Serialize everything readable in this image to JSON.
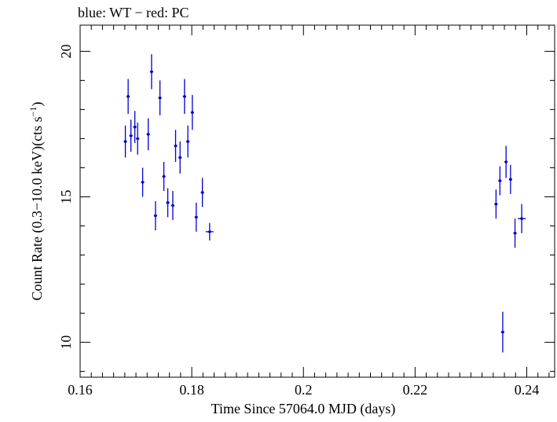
{
  "chart_data": {
    "type": "scatter",
    "title": "blue: WT − red: PC",
    "xlabel": "Time Since 57064.0 MJD (days)",
    "ylabel_main": "Count Rate (0.3−10.0 keV)(cts s",
    "ylabel_sup": "−1",
    "ylabel_close": ")",
    "xlim": [
      0.16,
      0.245
    ],
    "ylim": [
      8.8,
      20.9
    ],
    "xticks": [
      {
        "value": 0.16,
        "label": "0.16"
      },
      {
        "value": 0.18,
        "label": "0.18"
      },
      {
        "value": 0.2,
        "label": "0.2"
      },
      {
        "value": 0.22,
        "label": "0.22"
      },
      {
        "value": 0.24,
        "label": "0.24"
      }
    ],
    "yticks": [
      {
        "value": 10,
        "label": "10"
      },
      {
        "value": 15,
        "label": "15"
      },
      {
        "value": 20,
        "label": "20"
      }
    ],
    "x_minor_step": 0.002,
    "y_minor_step": 1,
    "grid": false,
    "series": [
      {
        "color": "#0000cc",
        "points": [
          {
            "x": 0.1681,
            "y": 16.9,
            "xerr": 0.0003,
            "yerr": 0.55
          },
          {
            "x": 0.1686,
            "y": 18.45,
            "xerr": 0.0003,
            "yerr": 0.6
          },
          {
            "x": 0.1691,
            "y": 17.1,
            "xerr": 0.0003,
            "yerr": 0.55
          },
          {
            "x": 0.1698,
            "y": 17.4,
            "xerr": 0.0003,
            "yerr": 0.55
          },
          {
            "x": 0.1703,
            "y": 17.0,
            "xerr": 0.0003,
            "yerr": 0.55
          },
          {
            "x": 0.1712,
            "y": 15.5,
            "xerr": 0.0003,
            "yerr": 0.5
          },
          {
            "x": 0.1722,
            "y": 17.15,
            "xerr": 0.0003,
            "yerr": 0.55
          },
          {
            "x": 0.1728,
            "y": 19.3,
            "xerr": 0.0003,
            "yerr": 0.6
          },
          {
            "x": 0.1735,
            "y": 14.35,
            "xerr": 0.0003,
            "yerr": 0.5
          },
          {
            "x": 0.1743,
            "y": 18.4,
            "xerr": 0.0003,
            "yerr": 0.6
          },
          {
            "x": 0.175,
            "y": 15.7,
            "xerr": 0.0003,
            "yerr": 0.5
          },
          {
            "x": 0.1757,
            "y": 14.8,
            "xerr": 0.0003,
            "yerr": 0.5
          },
          {
            "x": 0.1766,
            "y": 14.7,
            "xerr": 0.0003,
            "yerr": 0.5
          },
          {
            "x": 0.1771,
            "y": 16.75,
            "xerr": 0.0003,
            "yerr": 0.55
          },
          {
            "x": 0.1779,
            "y": 16.35,
            "xerr": 0.0003,
            "yerr": 0.55
          },
          {
            "x": 0.1787,
            "y": 18.45,
            "xerr": 0.0003,
            "yerr": 0.6
          },
          {
            "x": 0.1793,
            "y": 16.9,
            "xerr": 0.0003,
            "yerr": 0.55
          },
          {
            "x": 0.1801,
            "y": 17.9,
            "xerr": 0.0003,
            "yerr": 0.6
          },
          {
            "x": 0.1808,
            "y": 14.3,
            "xerr": 0.0003,
            "yerr": 0.5
          },
          {
            "x": 0.1819,
            "y": 15.15,
            "xerr": 0.0003,
            "yerr": 0.5
          },
          {
            "x": 0.1832,
            "y": 13.8,
            "xerr": 0.0007,
            "yerr": 0.3
          },
          {
            "x": 0.2345,
            "y": 14.75,
            "xerr": 0.0003,
            "yerr": 0.5
          },
          {
            "x": 0.2352,
            "y": 15.55,
            "xerr": 0.0003,
            "yerr": 0.5
          },
          {
            "x": 0.2357,
            "y": 10.35,
            "xerr": 0.0003,
            "yerr": 0.7
          },
          {
            "x": 0.2363,
            "y": 16.2,
            "xerr": 0.0003,
            "yerr": 0.55
          },
          {
            "x": 0.2371,
            "y": 15.6,
            "xerr": 0.0003,
            "yerr": 0.5
          },
          {
            "x": 0.2379,
            "y": 13.75,
            "xerr": 0.0003,
            "yerr": 0.5
          },
          {
            "x": 0.2391,
            "y": 14.25,
            "xerr": 0.0007,
            "yerr": 0.5
          }
        ]
      }
    ]
  }
}
